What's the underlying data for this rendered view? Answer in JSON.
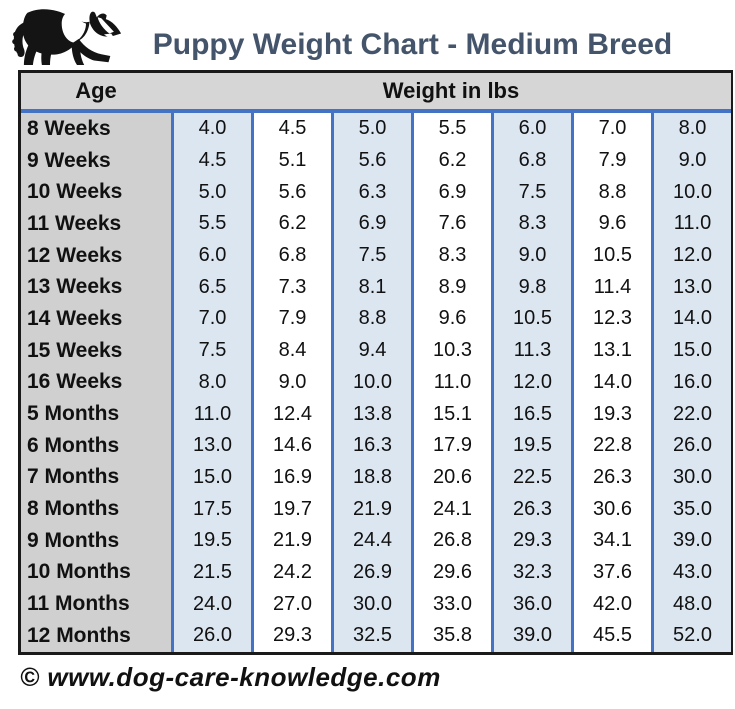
{
  "title": "Puppy Weight Chart - Medium Breed",
  "logo": {
    "icon": "border-collie-dog-icon"
  },
  "table_headers": {
    "age": "Age",
    "weight": "Weight in lbs"
  },
  "footer": {
    "copyright": "© www.dog-care-knowledge.com"
  },
  "colors": {
    "accent_blue": "#4472C4",
    "light_blue_fill": "#DCE6F1",
    "header_gray": "#D6D6D6",
    "age_column_gray": "#D0D0D0",
    "title_color": "#44546A",
    "border_black": "#1A1A1A"
  },
  "chart_data": {
    "type": "table",
    "title": "Puppy Weight Chart - Medium Breed",
    "age_header": "Age",
    "weight_header": "Weight in lbs",
    "value_format": "one_decimal",
    "ages": [
      "8 Weeks",
      "9 Weeks",
      "10 Weeks",
      "11 Weeks",
      "12 Weeks",
      "13 Weeks",
      "14 Weeks",
      "15 Weeks",
      "16 Weeks",
      "5 Months",
      "6 Months",
      "7 Months",
      "8 Months",
      "9 Months",
      "10 Months",
      "11 Months",
      "12 Months"
    ],
    "weights_lbs": [
      [
        4.0,
        4.5,
        5.0,
        5.5,
        6.0,
        7.0,
        8.0
      ],
      [
        4.5,
        5.1,
        5.6,
        6.2,
        6.8,
        7.9,
        9.0
      ],
      [
        5.0,
        5.6,
        6.3,
        6.9,
        7.5,
        8.8,
        10.0
      ],
      [
        5.5,
        6.2,
        6.9,
        7.6,
        8.3,
        9.6,
        11.0
      ],
      [
        6.0,
        6.8,
        7.5,
        8.3,
        9.0,
        10.5,
        12.0
      ],
      [
        6.5,
        7.3,
        8.1,
        8.9,
        9.8,
        11.4,
        13.0
      ],
      [
        7.0,
        7.9,
        8.8,
        9.6,
        10.5,
        12.3,
        14.0
      ],
      [
        7.5,
        8.4,
        9.4,
        10.3,
        11.3,
        13.1,
        15.0
      ],
      [
        8.0,
        9.0,
        10.0,
        11.0,
        12.0,
        14.0,
        16.0
      ],
      [
        11.0,
        12.4,
        13.8,
        15.1,
        16.5,
        19.3,
        22.0
      ],
      [
        13.0,
        14.6,
        16.3,
        17.9,
        19.5,
        22.8,
        26.0
      ],
      [
        15.0,
        16.9,
        18.8,
        20.6,
        22.5,
        26.3,
        30.0
      ],
      [
        17.5,
        19.7,
        21.9,
        24.1,
        26.3,
        30.6,
        35.0
      ],
      [
        19.5,
        21.9,
        24.4,
        26.8,
        29.3,
        34.1,
        39.0
      ],
      [
        21.5,
        24.2,
        26.9,
        29.6,
        32.3,
        37.6,
        43.0
      ],
      [
        24.0,
        27.0,
        30.0,
        33.0,
        36.0,
        42.0,
        48.0
      ],
      [
        26.0,
        29.3,
        32.5,
        35.8,
        39.0,
        45.5,
        52.0
      ]
    ]
  }
}
